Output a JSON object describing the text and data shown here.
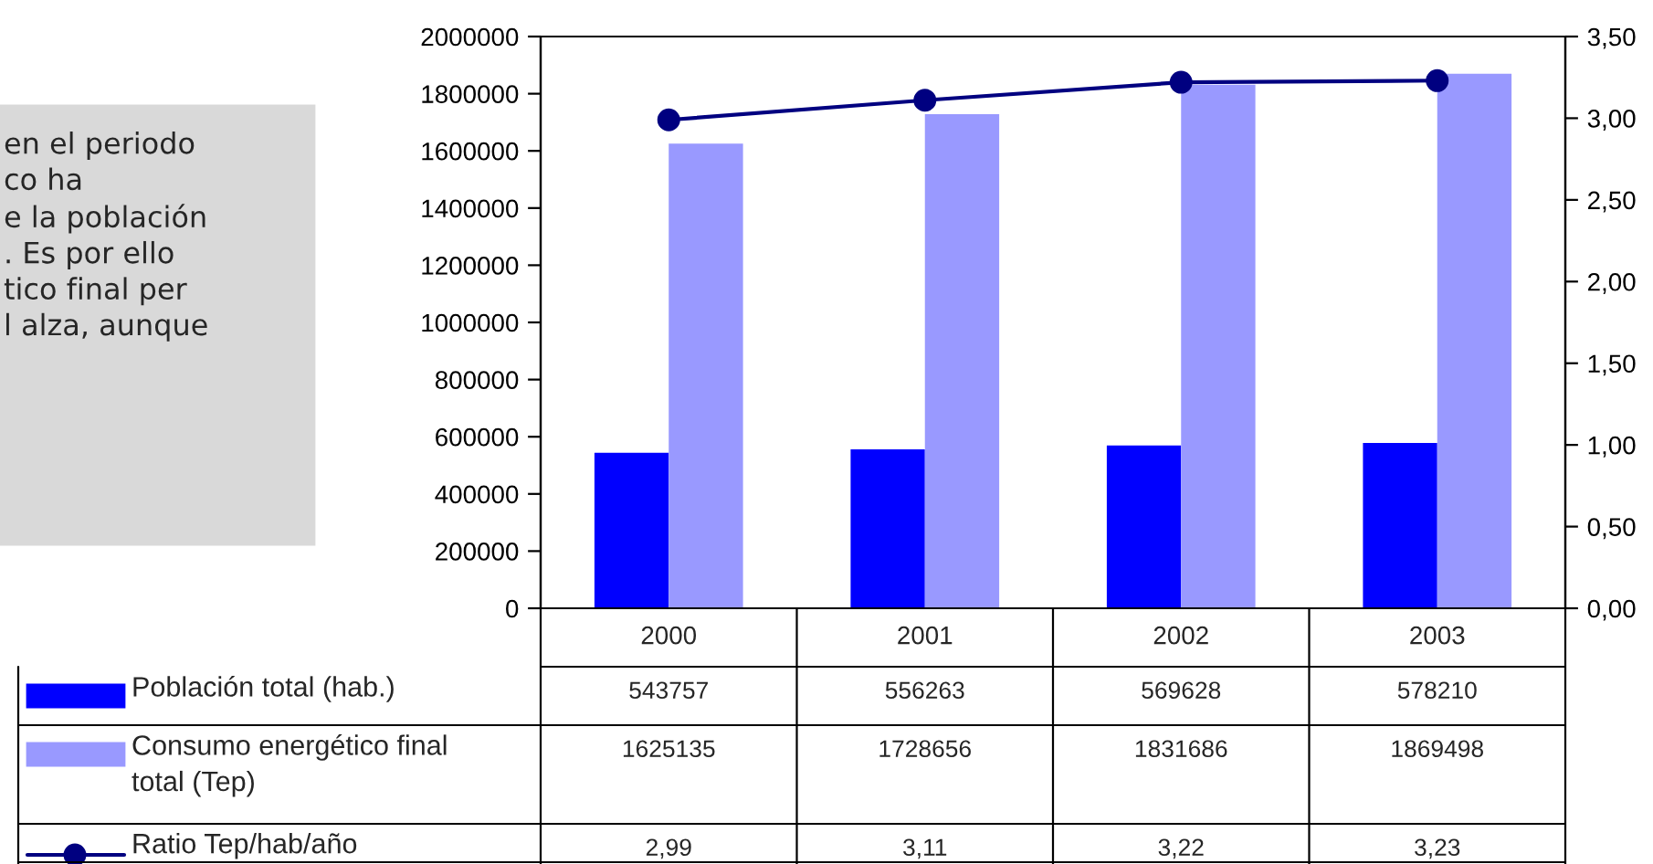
{
  "chart_data": {
    "type": "bar",
    "categories": [
      "2000",
      "2001",
      "2002",
      "2003"
    ],
    "series": [
      {
        "name": "Población total (hab.)",
        "color": "#0000ff",
        "values": [
          543757,
          556263,
          569628,
          578210
        ]
      },
      {
        "name": "Consumo energético final total (Tep)",
        "color": "#9999ff",
        "values": [
          1625135,
          1728656,
          1831686,
          1869498
        ]
      },
      {
        "name": "Ratio Tep/hab/año",
        "color": "#000080",
        "type": "line",
        "axis": "y2",
        "marker": "circle",
        "values": [
          2.99,
          3.11,
          3.22,
          3.23
        ]
      }
    ],
    "ylim": [
      0,
      2000000
    ],
    "yticks": [
      0,
      200000,
      400000,
      600000,
      800000,
      1000000,
      1200000,
      1400000,
      1600000,
      1800000,
      2000000
    ],
    "y2lim": [
      0,
      3.5
    ],
    "y2ticks": [
      {
        "value": 0,
        "label": "0,00"
      },
      {
        "value": 0.5,
        "label": "0,50"
      },
      {
        "value": 1,
        "label": "1,00"
      },
      {
        "value": 1.5,
        "label": "1,50"
      },
      {
        "value": 2,
        "label": "2,00"
      },
      {
        "value": 2.5,
        "label": "2,50"
      },
      {
        "value": 3,
        "label": "3,00"
      },
      {
        "value": 3.5,
        "label": "3,50"
      }
    ],
    "value_labels": [
      [
        "543757",
        "556263",
        "569628",
        "578210"
      ],
      [
        "1625135",
        "1728656",
        "1831686",
        "1869498"
      ],
      [
        "2,99",
        "3,11",
        "3,22",
        "3,23"
      ]
    ],
    "annotations": [
      "en el periodo\nco ha\ne la población\n. Es por ello\ntico final per\nl alza, aunque"
    ],
    "grid": false,
    "legend": "bottom left"
  }
}
